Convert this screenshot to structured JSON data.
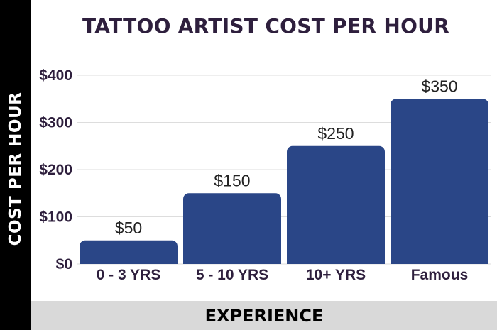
{
  "chart_data": {
    "type": "bar",
    "title": "TATTOO ARTIST COST PER HOUR",
    "xlabel": "EXPERIENCE",
    "ylabel": "COST PER HOUR",
    "categories": [
      "0 - 3 YRS",
      "5 - 10 YRS",
      "10+ YRS",
      "Famous"
    ],
    "values": [
      50,
      150,
      250,
      350
    ],
    "data_labels": [
      "$50",
      "$150",
      "$250",
      "$350"
    ],
    "ylim": [
      0,
      400
    ],
    "yticks": [
      0,
      100,
      200,
      300,
      400
    ],
    "ytick_labels": [
      "$0",
      "$100",
      "$200",
      "$300",
      "$400"
    ],
    "grid": true,
    "legend": "none",
    "colors": {
      "bar": "#2a4687",
      "title": "#2e1f3d",
      "grid": "#dddddd",
      "y_band": "#000000",
      "x_band": "#d9d9d9"
    }
  }
}
